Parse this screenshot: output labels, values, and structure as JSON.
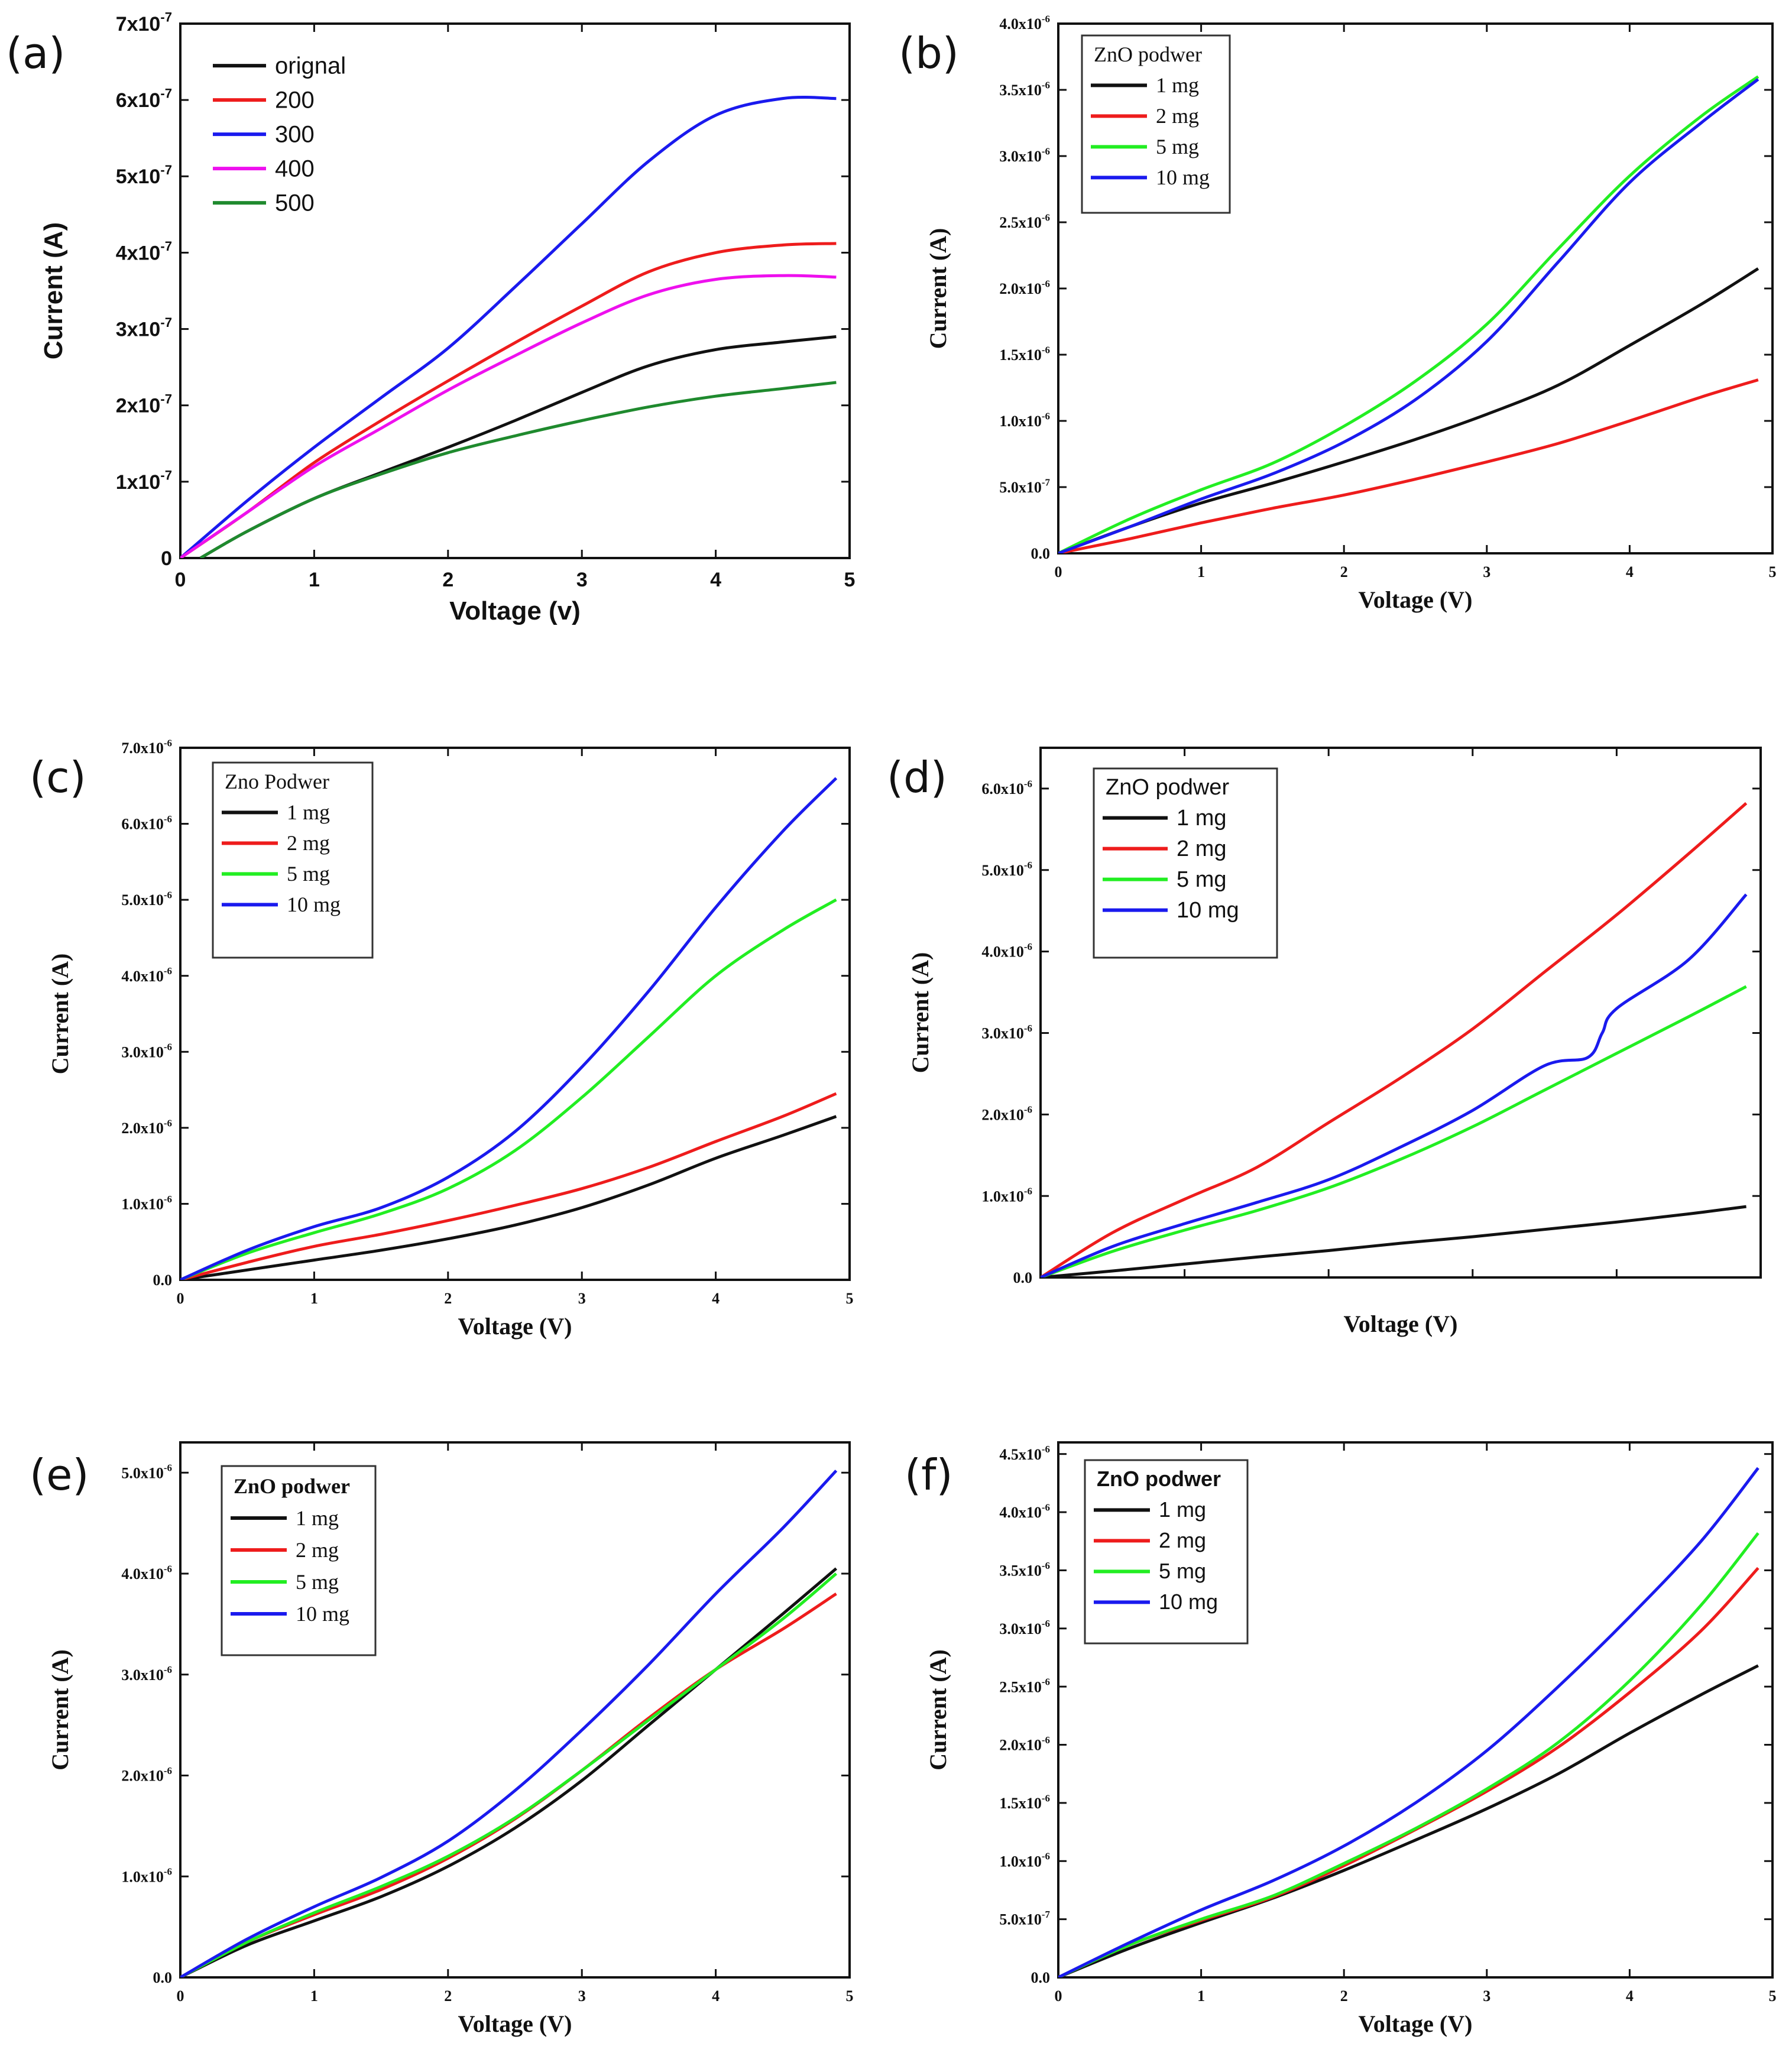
{
  "colors": {
    "black": "#111111",
    "red": "#ee1c1c",
    "blue": "#1a1aee",
    "magenta": "#ee10ee",
    "darkgreen": "#1f8a2e",
    "green": "#22ee22"
  },
  "chart_data": [
    {
      "panel": "(a)",
      "type": "line",
      "title": "",
      "xlabel": "Voltage (v)",
      "ylabel": "Current (A)",
      "xlim": [
        0,
        5
      ],
      "ylim": [
        0,
        7e-07
      ],
      "x_ticks": [
        "0",
        "1",
        "2",
        "3",
        "4",
        "5"
      ],
      "y_tick_values": [
        0,
        1e-07,
        2e-07,
        3e-07,
        4e-07,
        5e-07,
        6e-07,
        7e-07
      ],
      "y_tick_mantissas": [
        "0",
        "1x10",
        "2x10",
        "3x10",
        "4x10",
        "5x10",
        "6x10",
        "7x10"
      ],
      "y_tick_exponents": [
        "",
        "-7",
        "-7",
        "-7",
        "-7",
        "-7",
        "-7",
        "-7"
      ],
      "legend_title": "",
      "legend_position": "top-left",
      "series": [
        {
          "name": "orignal",
          "color": "black",
          "x": [
            0.15,
            0.5,
            1,
            1.5,
            2,
            2.5,
            3,
            3.5,
            4,
            4.5,
            4.9
          ],
          "values": [
            0,
            3.5e-08,
            7.8e-08,
            1.12e-07,
            1.45e-07,
            1.8e-07,
            2.17e-07,
            2.52e-07,
            2.73e-07,
            2.83e-07,
            2.9e-07
          ]
        },
        {
          "name": "200",
          "color": "red",
          "x": [
            0,
            0.5,
            1,
            1.5,
            2,
            2.5,
            3,
            3.5,
            4,
            4.5,
            4.9
          ],
          "values": [
            0,
            6e-08,
            1.25e-07,
            1.8e-07,
            2.32e-07,
            2.82e-07,
            3.3e-07,
            3.75e-07,
            4e-07,
            4.1e-07,
            4.12e-07
          ]
        },
        {
          "name": "300",
          "color": "blue",
          "x": [
            0,
            0.5,
            1,
            1.5,
            2,
            2.5,
            3,
            3.5,
            4,
            4.5,
            4.9
          ],
          "values": [
            0,
            7.5e-08,
            1.45e-07,
            2.1e-07,
            2.75e-07,
            3.55e-07,
            4.38e-07,
            5.2e-07,
            5.8e-07,
            6.02e-07,
            6.02e-07
          ]
        },
        {
          "name": "400",
          "color": "magenta",
          "x": [
            0,
            0.5,
            1,
            1.5,
            2,
            2.5,
            3,
            3.5,
            4,
            4.5,
            4.9
          ],
          "values": [
            0,
            6e-08,
            1.2e-07,
            1.7e-07,
            2.2e-07,
            2.65e-07,
            3.08e-07,
            3.45e-07,
            3.65e-07,
            3.7e-07,
            3.68e-07
          ]
        },
        {
          "name": "500",
          "color": "darkgreen",
          "x": [
            0.15,
            0.5,
            1,
            1.5,
            2,
            2.5,
            3,
            3.5,
            4,
            4.5,
            4.9
          ],
          "values": [
            0,
            3.5e-08,
            7.8e-08,
            1.1e-07,
            1.38e-07,
            1.6e-07,
            1.8e-07,
            1.98e-07,
            2.12e-07,
            2.22e-07,
            2.3e-07
          ]
        }
      ]
    },
    {
      "panel": "(b)",
      "type": "line",
      "title": "",
      "xlabel": "Voltage (V)",
      "ylabel": "Current (A)",
      "xlim": [
        0,
        5
      ],
      "ylim": [
        0,
        4e-06
      ],
      "x_ticks": [
        "0",
        "1",
        "2",
        "3",
        "4",
        "5"
      ],
      "y_tick_values": [
        0,
        5e-07,
        1e-06,
        1.5e-06,
        2e-06,
        2.5e-06,
        3e-06,
        3.5e-06,
        4e-06
      ],
      "y_tick_mantissas": [
        "0.0",
        "5.0x10",
        "1.0x10",
        "1.5x10",
        "2.0x10",
        "2.5x10",
        "3.0x10",
        "3.5x10",
        "4.0x10"
      ],
      "y_tick_exponents": [
        "",
        "-7",
        "-6",
        "-6",
        "-6",
        "-6",
        "-6",
        "-6",
        "-6"
      ],
      "legend_title": "ZnO podwer",
      "legend_position": "top-left",
      "series": [
        {
          "name": "1 mg",
          "color": "black",
          "x": [
            0,
            0.5,
            1,
            1.5,
            2,
            2.5,
            3,
            3.5,
            4,
            4.5,
            4.9
          ],
          "values": [
            0,
            2e-07,
            3.8e-07,
            5.3e-07,
            6.9e-07,
            8.6e-07,
            1.05e-06,
            1.27e-06,
            1.57e-06,
            1.88e-06,
            2.15e-06
          ]
        },
        {
          "name": "2 mg",
          "color": "red",
          "x": [
            0,
            0.5,
            1,
            1.5,
            2,
            2.5,
            3,
            3.5,
            4,
            4.5,
            4.9
          ],
          "values": [
            0,
            1.1e-07,
            2.3e-07,
            3.4e-07,
            4.4e-07,
            5.6e-07,
            6.9e-07,
            8.3e-07,
            1e-06,
            1.18e-06,
            1.31e-06
          ]
        },
        {
          "name": "5 mg",
          "color": "green",
          "x": [
            0,
            0.5,
            1,
            1.5,
            2,
            2.5,
            3,
            3.5,
            4,
            4.5,
            4.9
          ],
          "values": [
            0,
            2.6e-07,
            4.8e-07,
            6.8e-07,
            9.6e-07,
            1.3e-06,
            1.73e-06,
            2.3e-06,
            2.85e-06,
            3.3e-06,
            3.6e-06
          ]
        },
        {
          "name": "10 mg",
          "color": "blue",
          "x": [
            0,
            0.5,
            1,
            1.5,
            2,
            2.5,
            3,
            3.5,
            4,
            4.5,
            4.9
          ],
          "values": [
            0,
            2e-07,
            4.1e-07,
            6e-07,
            8.4e-07,
            1.16e-06,
            1.6e-06,
            2.2e-06,
            2.8e-06,
            3.25e-06,
            3.58e-06
          ]
        }
      ]
    },
    {
      "panel": "(c)",
      "type": "line",
      "title": "",
      "xlabel": "Voltage (V)",
      "ylabel": "Current (A)",
      "xlim": [
        0,
        5
      ],
      "ylim": [
        0,
        7e-06
      ],
      "x_ticks": [
        "0",
        "1",
        "2",
        "3",
        "4",
        "5"
      ],
      "y_tick_values": [
        0,
        1e-06,
        2e-06,
        3e-06,
        4e-06,
        5e-06,
        6e-06,
        7e-06
      ],
      "y_tick_mantissas": [
        "0.0",
        "1.0x10",
        "2.0x10",
        "3.0x10",
        "4.0x10",
        "5.0x10",
        "6.0x10",
        "7.0x10"
      ],
      "y_tick_exponents": [
        "",
        "-6",
        "-6",
        "-6",
        "-6",
        "-6",
        "-6",
        "-6"
      ],
      "legend_title": "Zno Podwer",
      "legend_position": "top-left",
      "series": [
        {
          "name": "1 mg",
          "color": "black",
          "x": [
            0,
            0.5,
            1,
            1.5,
            2,
            2.5,
            3,
            3.5,
            4,
            4.5,
            4.9
          ],
          "values": [
            0,
            1.3e-07,
            2.6e-07,
            3.9e-07,
            5.4e-07,
            7.2e-07,
            9.5e-07,
            1.25e-06,
            1.6e-06,
            1.9e-06,
            2.15e-06
          ]
        },
        {
          "name": "2 mg",
          "color": "red",
          "x": [
            0,
            0.5,
            1,
            1.5,
            2,
            2.5,
            3,
            3.5,
            4,
            4.5,
            4.9
          ],
          "values": [
            0,
            2.3e-07,
            4.4e-07,
            6e-07,
            7.8e-07,
            9.8e-07,
            1.2e-06,
            1.48e-06,
            1.82e-06,
            2.15e-06,
            2.45e-06
          ]
        },
        {
          "name": "5 mg",
          "color": "green",
          "x": [
            0,
            0.5,
            1,
            1.5,
            2,
            2.5,
            3,
            3.5,
            4,
            4.5,
            4.9
          ],
          "values": [
            0,
            3.5e-07,
            6.2e-07,
            8.7e-07,
            1.2e-06,
            1.7e-06,
            2.4e-06,
            3.2e-06,
            4e-06,
            4.6e-06,
            5e-06
          ]
        },
        {
          "name": "10 mg",
          "color": "blue",
          "x": [
            0,
            0.5,
            1,
            1.5,
            2,
            2.5,
            3,
            3.5,
            4,
            4.5,
            4.9
          ],
          "values": [
            0,
            3.9e-07,
            7e-07,
            9.5e-07,
            1.35e-06,
            1.95e-06,
            2.8e-06,
            3.8e-06,
            4.9e-06,
            5.9e-06,
            6.6e-06
          ]
        }
      ]
    },
    {
      "panel": "(d)",
      "type": "line",
      "title": "",
      "xlabel": "Voltage (V)",
      "ylabel": "Current (A)",
      "xlim": [
        0,
        5
      ],
      "ylim": [
        0,
        6.5e-06
      ],
      "x_ticks": [
        "",
        "",
        "",
        "",
        "",
        ""
      ],
      "y_tick_values": [
        0,
        1e-06,
        2e-06,
        3e-06,
        4e-06,
        5e-06,
        6e-06
      ],
      "y_tick_mantissas": [
        "0.0",
        "1.0x10",
        "2.0x10",
        "3.0x10",
        "4.0x10",
        "5.0x10",
        "6.0x10"
      ],
      "y_tick_exponents": [
        "",
        "-6",
        "-6",
        "-6",
        "-6",
        "-6",
        "-6"
      ],
      "legend_title": "ZnO podwer",
      "legend_position": "top-left",
      "series": [
        {
          "name": "1 mg",
          "color": "black",
          "x": [
            0,
            0.5,
            1,
            1.5,
            2,
            2.5,
            3,
            3.5,
            4,
            4.5,
            4.9
          ],
          "values": [
            0,
            8e-08,
            1.65e-07,
            2.5e-07,
            3.3e-07,
            4.2e-07,
            5e-07,
            5.9e-07,
            6.8e-07,
            7.8e-07,
            8.7e-07
          ]
        },
        {
          "name": "2 mg",
          "color": "red",
          "x": [
            0,
            0.5,
            1,
            1.5,
            2,
            2.5,
            3,
            3.5,
            4,
            4.5,
            4.9
          ],
          "values": [
            0,
            5.5e-07,
            9.6e-07,
            1.35e-06,
            1.9e-06,
            2.45e-06,
            3.05e-06,
            3.75e-06,
            4.45e-06,
            5.2e-06,
            5.82e-06
          ]
        },
        {
          "name": "5 mg",
          "color": "green",
          "x": [
            0,
            0.5,
            1,
            1.5,
            2,
            2.5,
            3,
            3.5,
            4,
            4.5,
            4.9
          ],
          "values": [
            0,
            3.2e-07,
            5.8e-07,
            8.2e-07,
            1.1e-06,
            1.45e-06,
            1.85e-06,
            2.3e-06,
            2.75e-06,
            3.2e-06,
            3.57e-06
          ]
        },
        {
          "name": "10 mg",
          "color": "blue",
          "x": [
            0,
            0.5,
            1,
            1.5,
            2,
            2.5,
            3,
            3.5,
            3.8,
            3.9,
            4,
            4.5,
            4.9
          ],
          "values": [
            0,
            3.8e-07,
            6.6e-07,
            9.2e-07,
            1.2e-06,
            1.6e-06,
            2.05e-06,
            2.6e-06,
            2.7e-06,
            3e-06,
            3.3e-06,
            3.9e-06,
            4.7e-06
          ]
        }
      ]
    },
    {
      "panel": "(e)",
      "type": "line",
      "title": "",
      "xlabel": "Voltage (V)",
      "ylabel": "Current (A)",
      "xlim": [
        0,
        5
      ],
      "ylim": [
        0,
        5.3e-06
      ],
      "x_ticks": [
        "0",
        "1",
        "2",
        "3",
        "4",
        "5"
      ],
      "y_tick_values": [
        0,
        1e-06,
        2e-06,
        3e-06,
        4e-06,
        5e-06
      ],
      "y_tick_mantissas": [
        "0.0",
        "1.0x10",
        "2.0x10",
        "3.0x10",
        "4.0x10",
        "5.0x10"
      ],
      "y_tick_exponents": [
        "",
        "-6",
        "-6",
        "-6",
        "-6",
        "-6"
      ],
      "legend_title": "ZnO podwer",
      "legend_position": "top-left",
      "series": [
        {
          "name": "1 mg",
          "color": "black",
          "x": [
            0,
            0.5,
            1,
            1.5,
            2,
            2.5,
            3,
            3.5,
            4,
            4.5,
            4.9
          ],
          "values": [
            0,
            3.2e-07,
            5.6e-07,
            8e-07,
            1.1e-06,
            1.48e-06,
            1.95e-06,
            2.5e-06,
            3.05e-06,
            3.6e-06,
            4.05e-06
          ]
        },
        {
          "name": "2 mg",
          "color": "red",
          "x": [
            0,
            0.5,
            1,
            1.5,
            2,
            2.5,
            3,
            3.5,
            4,
            4.5,
            4.9
          ],
          "values": [
            0,
            3.5e-07,
            6.2e-07,
            8.7e-07,
            1.18e-06,
            1.57e-06,
            2.05e-06,
            2.57e-06,
            3.05e-06,
            3.45e-06,
            3.8e-06
          ]
        },
        {
          "name": "5 mg",
          "color": "green",
          "x": [
            0,
            0.5,
            1,
            1.5,
            2,
            2.5,
            3,
            3.5,
            4,
            4.5,
            4.9
          ],
          "values": [
            0,
            3.5e-07,
            6.4e-07,
            9e-07,
            1.2e-06,
            1.58e-06,
            2.05e-06,
            2.55e-06,
            3.05e-06,
            3.55e-06,
            4e-06
          ]
        },
        {
          "name": "10 mg",
          "color": "blue",
          "x": [
            0,
            0.5,
            1,
            1.5,
            2,
            2.5,
            3,
            3.5,
            4,
            4.5,
            4.9
          ],
          "values": [
            0,
            3.8e-07,
            7e-07,
            9.9e-07,
            1.35e-06,
            1.85e-06,
            2.45e-06,
            3.1e-06,
            3.8e-06,
            4.45e-06,
            5.02e-06
          ]
        }
      ]
    },
    {
      "panel": "(f)",
      "type": "line",
      "title": "",
      "xlabel": "Voltage (V)",
      "ylabel": "Current (A)",
      "xlim": [
        0,
        5
      ],
      "ylim": [
        0,
        4.6e-06
      ],
      "x_ticks": [
        "0",
        "1",
        "2",
        "3",
        "4",
        "5"
      ],
      "y_tick_values": [
        0,
        5e-07,
        1e-06,
        1.5e-06,
        2e-06,
        2.5e-06,
        3e-06,
        3.5e-06,
        4e-06,
        4.5e-06
      ],
      "y_tick_mantissas": [
        "0.0",
        "5.0x10",
        "1.0x10",
        "1.5x10",
        "2.0x10",
        "2.5x10",
        "3.0x10",
        "3.5x10",
        "4.0x10",
        "4.5x10"
      ],
      "y_tick_exponents": [
        "",
        "-7",
        "-6",
        "-6",
        "-6",
        "-6",
        "-6",
        "-6",
        "-6",
        "-6"
      ],
      "legend_title": "ZnO podwer",
      "legend_position": "top-left",
      "series": [
        {
          "name": "1 mg",
          "color": "black",
          "x": [
            0,
            0.5,
            1,
            1.5,
            2,
            2.5,
            3,
            3.5,
            4,
            4.5,
            4.9
          ],
          "values": [
            0,
            2.5e-07,
            4.7e-07,
            6.8e-07,
            9.2e-07,
            1.18e-06,
            1.45e-06,
            1.75e-06,
            2.1e-06,
            2.43e-06,
            2.68e-06
          ]
        },
        {
          "name": "2 mg",
          "color": "red",
          "x": [
            0,
            0.5,
            1,
            1.5,
            2,
            2.5,
            3,
            3.5,
            4,
            4.5,
            4.9
          ],
          "values": [
            0,
            2.8e-07,
            4.9e-07,
            6.9e-07,
            9.6e-07,
            1.27e-06,
            1.6e-06,
            1.98e-06,
            2.45e-06,
            2.98e-06,
            3.52e-06
          ]
        },
        {
          "name": "5 mg",
          "color": "green",
          "x": [
            0,
            0.5,
            1,
            1.5,
            2,
            2.5,
            3,
            3.5,
            4,
            4.5,
            4.9
          ],
          "values": [
            0,
            2.8e-07,
            5e-07,
            7e-07,
            9.8e-07,
            1.28e-06,
            1.62e-06,
            2.02e-06,
            2.55e-06,
            3.2e-06,
            3.82e-06
          ]
        },
        {
          "name": "10 mg",
          "color": "blue",
          "x": [
            0,
            0.5,
            1,
            1.5,
            2,
            2.5,
            3,
            3.5,
            4,
            4.5,
            4.9
          ],
          "values": [
            0,
            3e-07,
            5.8e-07,
            8.3e-07,
            1.13e-06,
            1.5e-06,
            1.95e-06,
            2.5e-06,
            3.1e-06,
            3.75e-06,
            4.38e-06
          ]
        }
      ]
    }
  ]
}
